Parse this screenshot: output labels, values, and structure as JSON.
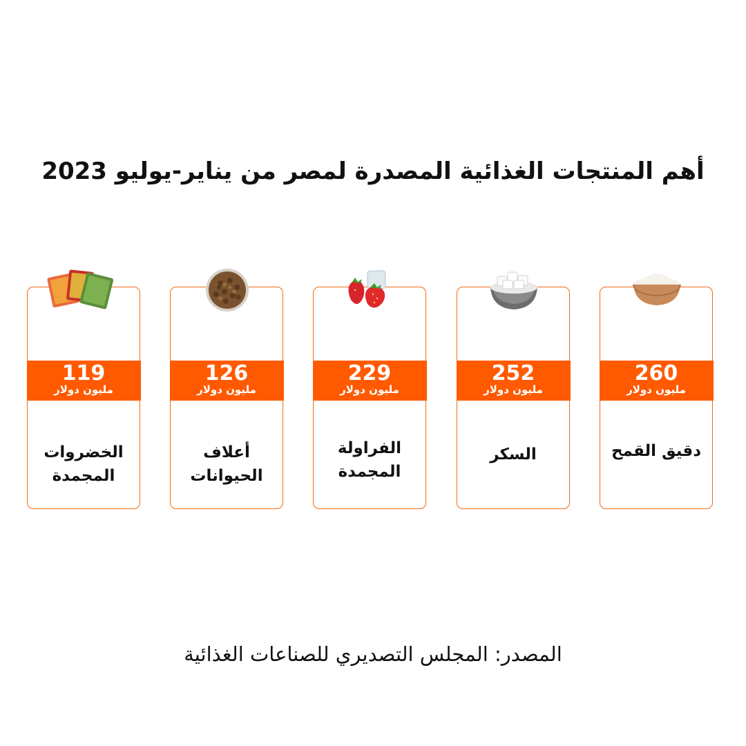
{
  "title": "أهم المنتجات الغذائية المصدرة لمصر من يناير-يوليو 2023",
  "source": "المصدر: المجلس التصديري للصناعات الغذائية",
  "colors": {
    "accent": "#ff5a00",
    "border": "#f26a13"
  },
  "chart_data": {
    "type": "bar",
    "title": "أهم المنتجات الغذائية المصدرة لمصر من يناير-يوليو 2023",
    "categories": [
      "دقيق القمح",
      "السكر",
      "الفراولة المجمدة",
      "أعلاف الحيوانات",
      "الخضروات المجمدة"
    ],
    "values": [
      260,
      252,
      229,
      126,
      119
    ],
    "unit": "مليون دولار",
    "icons": [
      "flour-bowl-icon",
      "sugar-bowl-icon",
      "strawberry-icon",
      "animal-feed-icon",
      "frozen-vegetables-icon"
    ]
  },
  "cards": [
    {
      "value": "260",
      "unit": "مليون دولار",
      "name": "دقيق القمح"
    },
    {
      "value": "252",
      "unit": "مليون دولار",
      "name": "السكر"
    },
    {
      "value": "229",
      "unit": "مليون دولار",
      "name": "الفراولة المجمدة"
    },
    {
      "value": "126",
      "unit": "مليون دولار",
      "name": "أعلاف الحيوانات"
    },
    {
      "value": "119",
      "unit": "مليون دولار",
      "name": "الخضروات المجمدة"
    }
  ]
}
